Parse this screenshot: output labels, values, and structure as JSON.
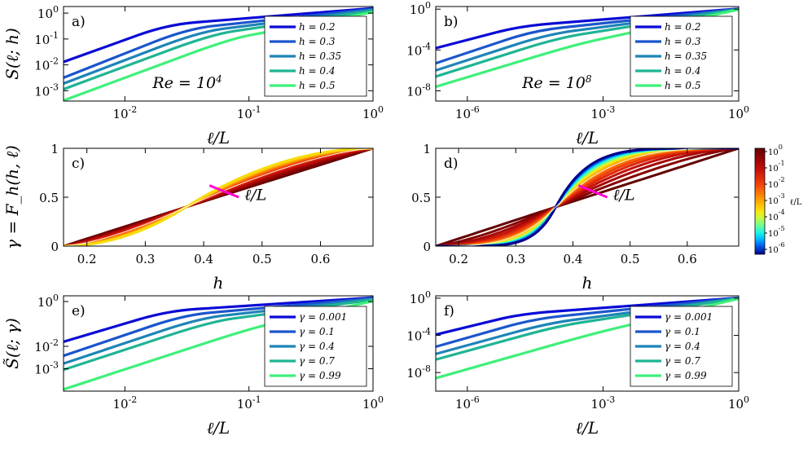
{
  "chart_data": [
    {
      "id": "a",
      "type": "line",
      "panel_label": "a)",
      "xscale": "log",
      "yscale": "log",
      "xlim": [
        0.0032,
        1
      ],
      "ylim": [
        0.0004,
        1.8
      ],
      "xticks": [
        {
          "v": 0.01,
          "base": "10",
          "exp": "-2"
        },
        {
          "v": 0.1,
          "base": "10",
          "exp": "-1"
        },
        {
          "v": 1,
          "base": "10",
          "exp": "0"
        }
      ],
      "yticks": [
        {
          "v": 0.001,
          "base": "10",
          "exp": "-3"
        },
        {
          "v": 0.01,
          "base": "10",
          "exp": "-2"
        },
        {
          "v": 0.1,
          "base": "10",
          "exp": "-1"
        },
        {
          "v": 1,
          "base": "10",
          "exp": "0"
        }
      ],
      "xlabel": "ℓ/L",
      "ylabel": "S(ℓ; h)",
      "annotation": {
        "base": "Re = 10",
        "exp": "4"
      },
      "legend_position": "bottom-right",
      "series": [
        {
          "name": "h = 0.2",
          "color": "#0a0ad6",
          "points": [
            [
              0.0032,
              0.013
            ],
            [
              0.022,
              0.36
            ],
            [
              1,
              1.55
            ]
          ]
        },
        {
          "name": "h = 0.3",
          "color": "#1a55cc",
          "points": [
            [
              0.0032,
              0.0032
            ],
            [
              0.032,
              0.25
            ],
            [
              1,
              1.45
            ]
          ]
        },
        {
          "name": "h = 0.35",
          "color": "#1d84b8",
          "points": [
            [
              0.0032,
              0.0019
            ],
            [
              0.04,
              0.19
            ],
            [
              1,
              1.35
            ]
          ]
        },
        {
          "name": "h = 0.4",
          "color": "#1fb494",
          "points": [
            [
              0.0032,
              0.00115
            ],
            [
              0.05,
              0.15
            ],
            [
              1,
              1.25
            ]
          ]
        },
        {
          "name": "h = 0.5",
          "color": "#3ef07a",
          "points": [
            [
              0.0032,
              0.00042
            ],
            [
              0.07,
              0.1
            ],
            [
              1,
              1.1
            ]
          ]
        }
      ]
    },
    {
      "id": "b",
      "type": "line",
      "panel_label": "b)",
      "xscale": "log",
      "yscale": "log",
      "xlim": [
        2e-07,
        1
      ],
      "ylim": [
        1e-09,
        1.8
      ],
      "xticks": [
        {
          "v": 1e-06,
          "base": "10",
          "exp": "-6"
        },
        {
          "v": 0.001,
          "base": "10",
          "exp": "-3"
        },
        {
          "v": 1,
          "base": "10",
          "exp": "0"
        }
      ],
      "yticks": [
        {
          "v": 1e-08,
          "base": "10",
          "exp": "-8"
        },
        {
          "v": 0.0001,
          "base": "10",
          "exp": "-4"
        },
        {
          "v": 1,
          "base": "10",
          "exp": "0"
        }
      ],
      "xlabel": "ℓ/L",
      "ylabel": "",
      "annotation": {
        "base": "Re = 10",
        "exp": "8"
      },
      "legend_position": "bottom-right",
      "series": [
        {
          "name": "h = 0.2",
          "color": "#0a0ad6",
          "points": [
            [
              2e-07,
              0.00015
            ],
            [
              1.5e-05,
              0.022
            ],
            [
              1,
              1.1
            ]
          ]
        },
        {
          "name": "h = 0.3",
          "color": "#1a55cc",
          "points": [
            [
              2e-07,
              5e-06
            ],
            [
              3e-05,
              0.008
            ],
            [
              1,
              1.05
            ]
          ]
        },
        {
          "name": "h = 0.35",
          "color": "#1d84b8",
          "points": [
            [
              2e-07,
              1e-06
            ],
            [
              6e-05,
              0.0035
            ],
            [
              1,
              1.0
            ]
          ]
        },
        {
          "name": "h = 0.4",
          "color": "#1fb494",
          "points": [
            [
              2e-07,
              2.5e-07
            ],
            [
              0.0001,
              0.0015
            ],
            [
              1,
              0.95
            ]
          ]
        },
        {
          "name": "h = 0.5",
          "color": "#3ef07a",
          "points": [
            [
              2e-07,
              2.5e-08
            ],
            [
              0.00025,
              0.00035
            ],
            [
              1,
              0.9
            ]
          ]
        }
      ]
    },
    {
      "id": "c",
      "type": "line",
      "panel_label": "c)",
      "xscale": "linear",
      "yscale": "linear",
      "xlim": [
        0.16,
        0.69
      ],
      "ylim": [
        0,
        1
      ],
      "xticks": [
        {
          "v": 0.2,
          "t": "0.2"
        },
        {
          "v": 0.3,
          "t": "0.3"
        },
        {
          "v": 0.4,
          "t": "0.4"
        },
        {
          "v": 0.5,
          "t": "0.5"
        },
        {
          "v": 0.6,
          "t": "0.6"
        }
      ],
      "yticks": [
        {
          "v": 0,
          "t": "0"
        },
        {
          "v": 0.5,
          "t": "0.5"
        },
        {
          "v": 1,
          "t": "1"
        }
      ],
      "xlabel": "h",
      "ylabel": "γ = F_h(h, ℓ)",
      "arrow_label": "ℓ/L",
      "family": {
        "h0": 0.37,
        "g0": 0.4,
        "xmin": 0.16,
        "xmax": 0.69,
        "kmin": 1.0,
        "kmax": 2.0,
        "count": 14,
        "cmin": 0.0,
        "cmax": 0.58
      }
    },
    {
      "id": "d",
      "type": "line",
      "panel_label": "d)",
      "xscale": "linear",
      "yscale": "linear",
      "xlim": [
        0.16,
        0.69
      ],
      "ylim": [
        0,
        1
      ],
      "xticks": [
        {
          "v": 0.2,
          "t": "0.2"
        },
        {
          "v": 0.3,
          "t": "0.3"
        },
        {
          "v": 0.4,
          "t": "0.4"
        },
        {
          "v": 0.5,
          "t": "0.5"
        },
        {
          "v": 0.6,
          "t": "0.6"
        }
      ],
      "yticks": [
        {
          "v": 0,
          "t": "0"
        },
        {
          "v": 0.5,
          "t": "0.5"
        },
        {
          "v": 1,
          "t": "1"
        }
      ],
      "xlabel": "h",
      "ylabel": "",
      "arrow_label": "ℓ/L",
      "family": {
        "h0": 0.37,
        "g0": 0.4,
        "xmin": 0.16,
        "xmax": 0.69,
        "kmin": 1.0,
        "kmax": 6.0,
        "count": 16,
        "cmin": 0.0,
        "cmax": 1.0
      },
      "colorbar": {
        "label": "ℓ/L",
        "ticks": [
          {
            "base": "10",
            "exp": "0"
          },
          {
            "base": "10",
            "exp": "-1"
          },
          {
            "base": "10",
            "exp": "-2"
          },
          {
            "base": "10",
            "exp": "-3"
          },
          {
            "base": "10",
            "exp": "-4"
          },
          {
            "base": "10",
            "exp": "-5"
          },
          {
            "base": "10",
            "exp": "-6"
          }
        ]
      }
    },
    {
      "id": "e",
      "type": "line",
      "panel_label": "e)",
      "xscale": "log",
      "yscale": "log",
      "xlim": [
        0.0032,
        1
      ],
      "ylim": [
        0.0001,
        1.8
      ],
      "xticks": [
        {
          "v": 0.01,
          "base": "10",
          "exp": "-2"
        },
        {
          "v": 0.1,
          "base": "10",
          "exp": "-1"
        },
        {
          "v": 1,
          "base": "10",
          "exp": "0"
        }
      ],
      "yticks": [
        {
          "v": 0.001,
          "base": "10",
          "exp": "-3"
        },
        {
          "v": 0.01,
          "base": "10",
          "exp": "-2"
        },
        {
          "v": 1,
          "base": "10",
          "exp": "0"
        }
      ],
      "xlabel": "ℓ/L",
      "ylabel": "S̃(ℓ; γ)",
      "legend_position": "bottom-right",
      "series": [
        {
          "name": "γ = 0.001",
          "color": "#0a0ad6",
          "points": [
            [
              0.0032,
              0.016
            ],
            [
              0.022,
              0.38
            ],
            [
              1,
              1.5
            ]
          ]
        },
        {
          "name": "γ = 0.1",
          "color": "#1a55cc",
          "points": [
            [
              0.0032,
              0.0038
            ],
            [
              0.03,
              0.25
            ],
            [
              1,
              1.4
            ]
          ]
        },
        {
          "name": "γ = 0.4",
          "color": "#1d84b8",
          "points": [
            [
              0.0032,
              0.0017
            ],
            [
              0.04,
              0.18
            ],
            [
              1,
              1.3
            ]
          ]
        },
        {
          "name": "γ = 0.7",
          "color": "#1fb494",
          "points": [
            [
              0.0032,
              0.0009
            ],
            [
              0.05,
              0.13
            ],
            [
              1,
              1.2
            ]
          ]
        },
        {
          "name": "γ = 0.99",
          "color": "#3ef07a",
          "points": [
            [
              0.0032,
              0.00012
            ],
            [
              0.1,
              0.06
            ],
            [
              1,
              1.05
            ]
          ]
        }
      ]
    },
    {
      "id": "f",
      "type": "line",
      "panel_label": "f)",
      "xscale": "log",
      "yscale": "log",
      "xlim": [
        2e-07,
        1
      ],
      "ylim": [
        1e-10,
        1.8
      ],
      "xticks": [
        {
          "v": 1e-06,
          "base": "10",
          "exp": "-6"
        },
        {
          "v": 0.001,
          "base": "10",
          "exp": "-3"
        },
        {
          "v": 1,
          "base": "10",
          "exp": "0"
        }
      ],
      "yticks": [
        {
          "v": 1e-08,
          "base": "10",
          "exp": "-8"
        },
        {
          "v": 0.0001,
          "base": "10",
          "exp": "-4"
        },
        {
          "v": 1,
          "base": "10",
          "exp": "0"
        }
      ],
      "xlabel": "ℓ/L",
      "ylabel": "",
      "legend_position": "bottom-right",
      "series": [
        {
          "name": "γ = 0.001",
          "color": "#0a0ad6",
          "points": [
            [
              2e-07,
              0.00012
            ],
            [
              1.5e-05,
              0.02
            ],
            [
              1,
              1.1
            ]
          ]
        },
        {
          "name": "γ = 0.1",
          "color": "#1a55cc",
          "points": [
            [
              2e-07,
              6e-06
            ],
            [
              3e-05,
              0.006
            ],
            [
              1,
              1.05
            ]
          ]
        },
        {
          "name": "γ = 0.4",
          "color": "#1d84b8",
          "points": [
            [
              2e-07,
              1e-06
            ],
            [
              6e-05,
              0.002
            ],
            [
              1,
              1.0
            ]
          ]
        },
        {
          "name": "γ = 0.7",
          "color": "#1fb494",
          "points": [
            [
              2e-07,
              2.5e-07
            ],
            [
              0.0001,
              0.001
            ],
            [
              1,
              0.95
            ]
          ]
        },
        {
          "name": "γ = 0.99",
          "color": "#3ef07a",
          "points": [
            [
              2e-07,
              2.5e-09
            ],
            [
              0.0005,
              0.00012
            ],
            [
              1,
              0.9
            ]
          ]
        }
      ]
    }
  ]
}
